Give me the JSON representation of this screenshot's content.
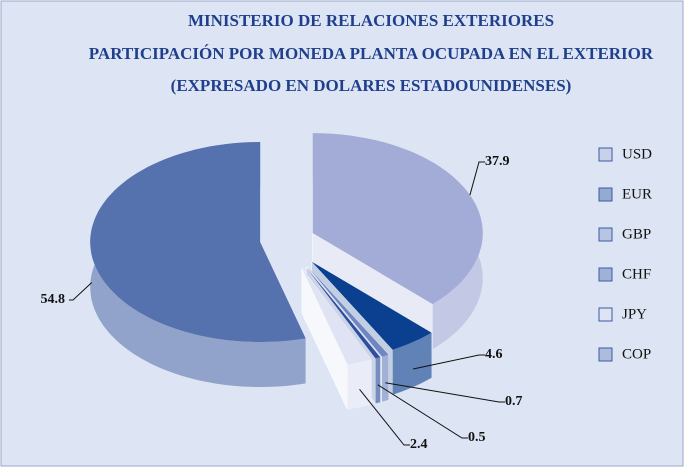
{
  "chart_data": {
    "type": "pie3d",
    "title": [
      "MINISTERIO DE RELACIONES EXTERIORES",
      "PARTICIPACIÓN POR MONEDA PLANTA OCUPADA EN EL EXTERIOR",
      "(EXPRESADO EN DOLARES ESTADOUNIDENSES)"
    ],
    "categories": [
      "USD",
      "EUR",
      "GBP",
      "CHF",
      "JPY",
      "COP"
    ],
    "values": [
      37.9,
      4.6,
      0.7,
      0.5,
      2.4,
      54.8
    ],
    "colors": [
      "#a3acd6",
      "#0b3f8f",
      "#6f86c2",
      "#2d4f9e",
      "#dfe3f3",
      "#5571ae"
    ],
    "legend": "right"
  }
}
